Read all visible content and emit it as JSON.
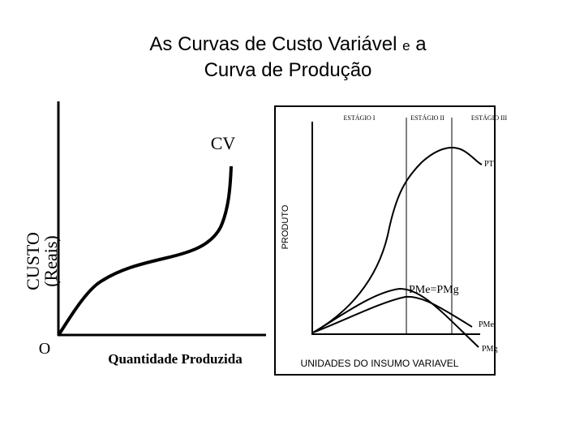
{
  "title": {
    "line1": "As Curvas de Custo Variável",
    "small_word": "e",
    "word": "a",
    "line2": "Curva de Produção"
  },
  "cost_diagram": {
    "curve_label": "CV",
    "y_axis_label": [
      "CUSTO",
      "(Reais)"
    ],
    "origin_label": "O",
    "x_axis_label": "Quantidade Produzida"
  },
  "production_diagram": {
    "stages": [
      "ESTÁGIO I",
      "ESTÁGIO II",
      "ESTÁGIO III"
    ],
    "y_axis_label": "PRODUTO",
    "curve_labels": {
      "total": "PT",
      "intersection": "PMe=PMg",
      "average": "PMe",
      "marginal": "PMg"
    },
    "x_axis_label": "UNIDADES DO INSUMO VARIAVEL"
  }
}
